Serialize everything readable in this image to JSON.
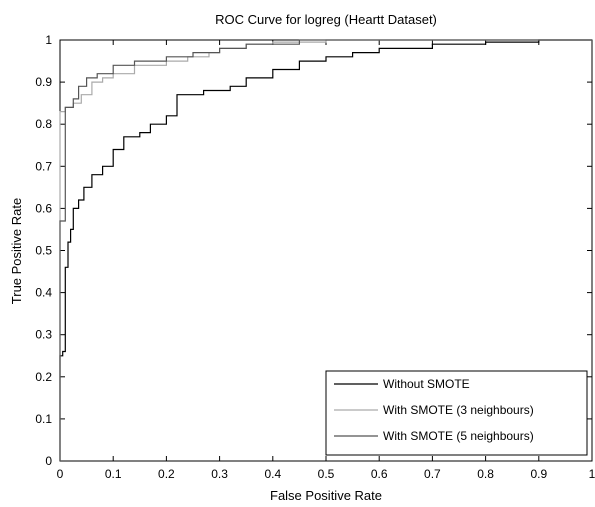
{
  "chart_data": {
    "type": "line",
    "title": "ROC Curve for logreg (Heartt Dataset)",
    "xlabel": "False Positive Rate",
    "ylabel": "True Positive Rate",
    "xlim": [
      0,
      1
    ],
    "ylim": [
      0,
      1
    ],
    "xticks": [
      0,
      0.1,
      0.2,
      0.3,
      0.4,
      0.5,
      0.6,
      0.7,
      0.8,
      0.9,
      1
    ],
    "xtick_labels": [
      "0",
      "0.1",
      "0.2",
      "0.3",
      "0.4",
      "0.5",
      "0.6",
      "0.7",
      "0.8",
      "0.9",
      "1"
    ],
    "yticks": [
      0,
      0.1,
      0.2,
      0.3,
      0.4,
      0.5,
      0.6,
      0.7,
      0.8,
      0.9,
      1
    ],
    "ytick_labels": [
      "0",
      "0.1",
      "0.2",
      "0.3",
      "0.4",
      "0.5",
      "0.6",
      "0.7",
      "0.8",
      "0.9",
      "1"
    ],
    "grid": false,
    "legend_position": "bottom-right",
    "series": [
      {
        "name": "Without SMOTE",
        "color": "#000000",
        "points": [
          [
            0,
            0
          ],
          [
            0,
            0.25
          ],
          [
            0.005,
            0.26
          ],
          [
            0.01,
            0.46
          ],
          [
            0.015,
            0.52
          ],
          [
            0.02,
            0.55
          ],
          [
            0.025,
            0.6
          ],
          [
            0.035,
            0.62
          ],
          [
            0.045,
            0.65
          ],
          [
            0.06,
            0.68
          ],
          [
            0.08,
            0.7
          ],
          [
            0.1,
            0.74
          ],
          [
            0.12,
            0.77
          ],
          [
            0.15,
            0.78
          ],
          [
            0.17,
            0.8
          ],
          [
            0.2,
            0.82
          ],
          [
            0.22,
            0.87
          ],
          [
            0.27,
            0.88
          ],
          [
            0.32,
            0.89
          ],
          [
            0.35,
            0.91
          ],
          [
            0.4,
            0.93
          ],
          [
            0.45,
            0.95
          ],
          [
            0.5,
            0.96
          ],
          [
            0.55,
            0.97
          ],
          [
            0.6,
            0.98
          ],
          [
            0.7,
            0.99
          ],
          [
            0.8,
            0.995
          ],
          [
            0.9,
            1.0
          ],
          [
            1,
            1
          ]
        ]
      },
      {
        "name": "With SMOTE (3 neighbours)",
        "color": "#aaaaaa",
        "points": [
          [
            0,
            0
          ],
          [
            0,
            0.83
          ],
          [
            0.01,
            0.84
          ],
          [
            0.025,
            0.85
          ],
          [
            0.04,
            0.87
          ],
          [
            0.06,
            0.9
          ],
          [
            0.08,
            0.91
          ],
          [
            0.1,
            0.92
          ],
          [
            0.14,
            0.94
          ],
          [
            0.2,
            0.95
          ],
          [
            0.24,
            0.96
          ],
          [
            0.28,
            0.97
          ],
          [
            0.3,
            0.98
          ],
          [
            0.35,
            0.99
          ],
          [
            0.4,
            0.995
          ],
          [
            0.5,
            1.0
          ],
          [
            1,
            1
          ]
        ]
      },
      {
        "name": "With SMOTE (5 neighbours)",
        "color": "#555555",
        "points": [
          [
            0,
            0
          ],
          [
            0,
            0.57
          ],
          [
            0.01,
            0.84
          ],
          [
            0.025,
            0.86
          ],
          [
            0.035,
            0.89
          ],
          [
            0.05,
            0.91
          ],
          [
            0.07,
            0.92
          ],
          [
            0.1,
            0.94
          ],
          [
            0.14,
            0.95
          ],
          [
            0.2,
            0.96
          ],
          [
            0.25,
            0.97
          ],
          [
            0.3,
            0.98
          ],
          [
            0.35,
            0.99
          ],
          [
            0.45,
            1.0
          ],
          [
            1,
            1
          ]
        ]
      }
    ]
  }
}
